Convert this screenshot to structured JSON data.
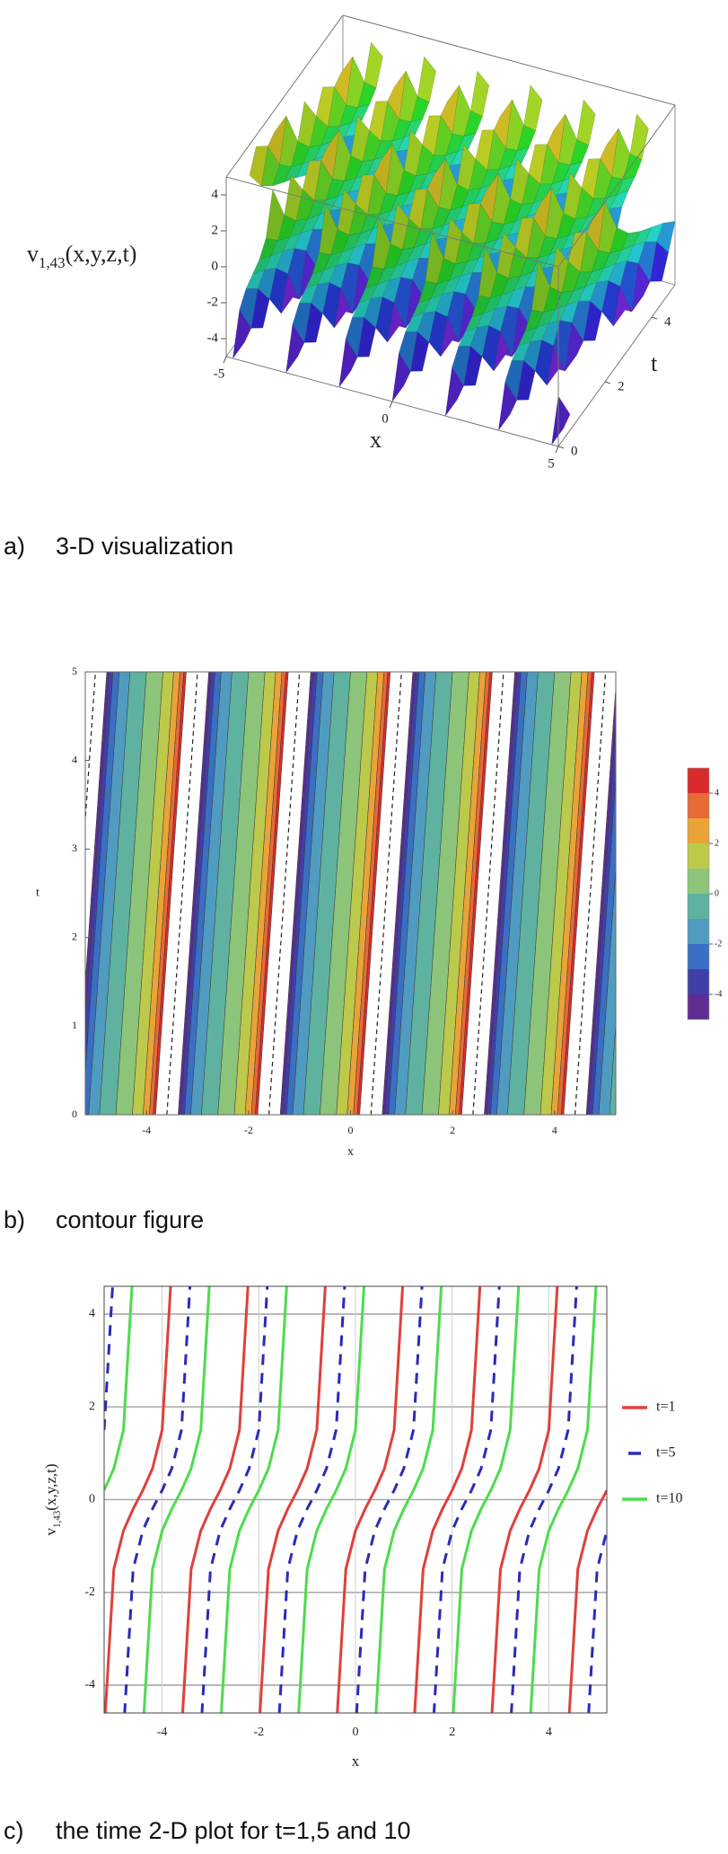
{
  "chart_data": [
    {
      "type": "surface3d",
      "zlabel": {
        "base": "v",
        "sub": "1,43",
        "args": "(x,y,z,t)"
      },
      "xlabel": "x",
      "tlabel": "t",
      "xlim": [
        -5,
        5
      ],
      "tlim": [
        0,
        5
      ],
      "zlim": [
        -5,
        5
      ],
      "xticks": [
        -5,
        0,
        5
      ],
      "tticks": [
        0,
        2,
        4
      ],
      "zticks": [
        -4,
        -2,
        0,
        2,
        4
      ],
      "caption": {
        "label": "a)",
        "text": "3-D visualization"
      }
    },
    {
      "type": "contour",
      "xlabel": "x",
      "ylabel": "t",
      "xlim": [
        -5.2,
        5.2
      ],
      "ylim": [
        0,
        5
      ],
      "xticks": [
        -4,
        -2,
        0,
        2,
        4
      ],
      "yticks": [
        0,
        1,
        2,
        3,
        4,
        5
      ],
      "colorbar": {
        "levels": [
          -5,
          -4,
          -3,
          -2,
          -1,
          0,
          1,
          2,
          3,
          4,
          5
        ],
        "colors": [
          "#5e2d91",
          "#3f3fa8",
          "#3a6fc4",
          "#4f9cc0",
          "#5fb2a0",
          "#8cc47a",
          "#bcc94a",
          "#eaa336",
          "#e86a35",
          "#d92b2b"
        ],
        "ticks": [
          -4,
          -2,
          0,
          2,
          4
        ]
      },
      "caption": {
        "label": "b)",
        "text": "contour figure"
      }
    },
    {
      "type": "line",
      "xlabel": "x",
      "ylabel": {
        "base": "v",
        "sub": "1,43",
        "args": "(x,y,z,t)"
      },
      "xlim": [
        -5.2,
        5.2
      ],
      "ylim": [
        -4.6,
        4.6
      ],
      "xticks": [
        -4,
        -2,
        0,
        2,
        4
      ],
      "yticks": [
        -4,
        -2,
        0,
        2,
        4
      ],
      "grid": true,
      "legend": "right",
      "series": [
        {
          "name": "t=1",
          "color": "#e0403a",
          "dash": false,
          "x": [
            -5.2,
            -5.0,
            -4.8,
            -4.6,
            -4.4,
            -4.2,
            -4.0,
            -3.8,
            -3.7,
            -3.6,
            -3.4,
            -3.2,
            -3.0,
            -2.8,
            -2.6,
            -2.4,
            -2.2,
            -2.1,
            -2.0,
            -1.8,
            -1.6,
            -1.4,
            -1.2,
            -1.0,
            -0.8,
            -0.6,
            -0.5,
            -0.4,
            -0.2,
            0,
            0.2,
            0.4,
            0.6,
            0.8,
            1.0,
            1.1,
            1.2,
            1.4,
            1.6,
            1.8,
            2.0,
            2.2,
            2.4,
            2.6,
            2.7,
            2.8,
            3.0,
            3.2,
            3.4,
            3.6,
            3.8,
            4.0,
            4.2,
            4.3,
            4.4,
            4.6,
            4.8,
            5.0,
            5.2
          ],
          "values": [
            -5.03,
            -1.5,
            -0.67,
            -0.2,
            0.2,
            0.67,
            1.5,
            5.03,
            null,
            -5.03,
            -1.5,
            -0.67,
            -0.2,
            0.2,
            0.67,
            1.5,
            5.03,
            null,
            -5.03,
            -1.5,
            -0.67,
            -0.2,
            0.2,
            0.67,
            1.5,
            5.03,
            null,
            -5.03,
            -1.5,
            -0.67,
            -0.2,
            0.2,
            0.67,
            1.5,
            5.03,
            null,
            -5.03,
            -1.5,
            -0.67,
            -0.2,
            0.2,
            0.67,
            1.5,
            5.03,
            null,
            -5.03,
            -1.5,
            -0.67,
            -0.2,
            0.2,
            0.67,
            1.5,
            5.03,
            null,
            -5.03,
            -1.5,
            -0.67,
            -0.2,
            0.2
          ]
        },
        {
          "name": "t=5",
          "color": "#2b2bb8",
          "dash": true,
          "x": [
            -5.2,
            -5.0,
            -4.9,
            -4.8,
            -4.6,
            -4.4,
            -4.2,
            -4.0,
            -3.8,
            -3.6,
            -3.4,
            -3.3,
            -3.2,
            -3.0,
            -2.8,
            -2.6,
            -2.4,
            -2.2,
            -2.0,
            -1.8,
            -1.7,
            -1.6,
            -1.4,
            -1.2,
            -1.0,
            -0.8,
            -0.6,
            -0.4,
            -0.2,
            -0.1,
            0,
            0.2,
            0.4,
            0.6,
            0.8,
            1.0,
            1.2,
            1.4,
            1.5,
            1.6,
            1.8,
            2.0,
            2.2,
            2.4,
            2.6,
            2.8,
            3.0,
            3.1,
            3.2,
            3.4,
            3.6,
            3.8,
            4.0,
            4.2,
            4.4,
            4.6,
            4.7,
            4.8,
            5.0,
            5.2
          ],
          "values": [
            1.5,
            5.03,
            null,
            -5.03,
            -1.5,
            -0.67,
            -0.2,
            0.2,
            0.67,
            1.5,
            5.03,
            null,
            -5.03,
            -1.5,
            -0.67,
            -0.2,
            0.2,
            0.67,
            1.5,
            5.03,
            null,
            -5.03,
            -1.5,
            -0.67,
            -0.2,
            0.2,
            0.67,
            1.5,
            5.03,
            null,
            -5.03,
            -1.5,
            -0.67,
            -0.2,
            0.2,
            0.67,
            1.5,
            5.03,
            null,
            -5.03,
            -1.5,
            -0.67,
            -0.2,
            0.2,
            0.67,
            1.5,
            5.03,
            null,
            -5.03,
            -1.5,
            -0.67,
            -0.2,
            0.2,
            0.67,
            1.5,
            5.03,
            null,
            -5.03,
            -1.5,
            -0.67
          ]
        },
        {
          "name": "t=10",
          "color": "#4ddc4d",
          "dash": false,
          "x": [
            -5.2,
            -5.0,
            -4.8,
            -4.6,
            -4.5,
            -4.4,
            -4.2,
            -4.0,
            -3.8,
            -3.6,
            -3.4,
            -3.2,
            -3.0,
            -2.9,
            -2.8,
            -2.6,
            -2.4,
            -2.2,
            -2.0,
            -1.8,
            -1.6,
            -1.4,
            -1.3,
            -1.2,
            -1.0,
            -0.8,
            -0.6,
            -0.4,
            -0.2,
            0,
            0.2,
            0.3,
            0.4,
            0.6,
            0.8,
            1.0,
            1.2,
            1.4,
            1.6,
            1.8,
            1.9,
            2.0,
            2.2,
            2.4,
            2.6,
            2.8,
            3.0,
            3.2,
            3.4,
            3.5,
            3.6,
            3.8,
            4.0,
            4.2,
            4.4,
            4.6,
            4.8,
            5.0
          ],
          "values": [
            0.2,
            0.67,
            1.5,
            5.03,
            null,
            -5.03,
            -1.5,
            -0.67,
            -0.2,
            0.2,
            0.67,
            1.5,
            5.03,
            null,
            -5.03,
            -1.5,
            -0.67,
            -0.2,
            0.2,
            0.67,
            1.5,
            5.03,
            null,
            -5.03,
            -1.5,
            -0.67,
            -0.2,
            0.2,
            0.67,
            1.5,
            5.03,
            null,
            -5.03,
            -1.5,
            -0.67,
            -0.2,
            0.2,
            0.67,
            1.5,
            5.03,
            null,
            -5.03,
            -1.5,
            -0.67,
            -0.2,
            0.2,
            0.67,
            1.5,
            5.03,
            null,
            -5.03,
            -1.5,
            -0.67,
            -0.2,
            0.2,
            0.67,
            1.5,
            5.03
          ]
        }
      ],
      "caption": {
        "label": "c)",
        "text": "the time 2-D plot for t=1,5 and 10"
      }
    }
  ]
}
